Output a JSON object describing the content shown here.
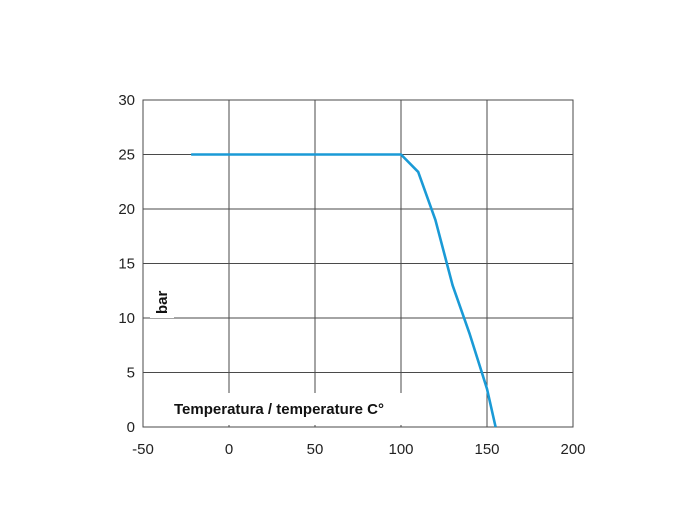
{
  "chart_data": {
    "type": "line",
    "title": "",
    "xlabel": "Temperatura / temperature C°",
    "ylabel": "bar",
    "xlim": [
      -50,
      200
    ],
    "ylim": [
      0,
      30
    ],
    "x_ticks": [
      -50,
      0,
      50,
      100,
      150,
      200
    ],
    "y_ticks": [
      0,
      5,
      10,
      15,
      20,
      25,
      30
    ],
    "grid": true,
    "series": [
      {
        "x": [
          -22,
          100,
          110,
          120,
          130,
          140,
          150,
          155
        ],
        "y": [
          25,
          25,
          23.4,
          19,
          13,
          8.5,
          3.5,
          0
        ],
        "color": "#1a9ad6"
      }
    ]
  }
}
